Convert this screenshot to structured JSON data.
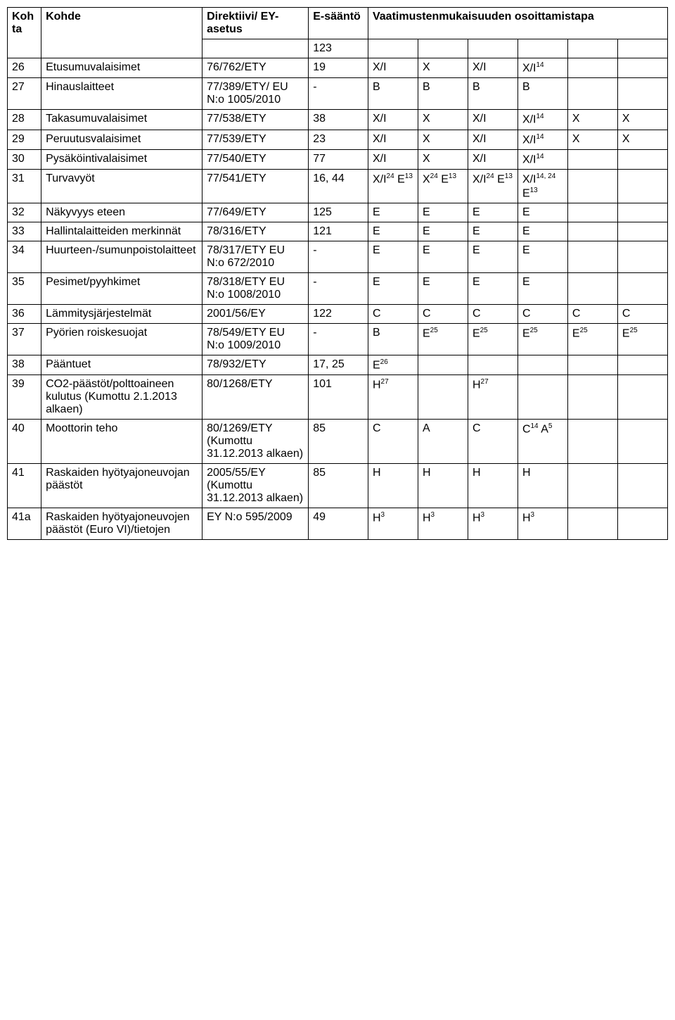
{
  "headers": {
    "kohta": "Kohta",
    "kohde": "Kohde",
    "direktiivi": "Direktiivi/ EY-asetus",
    "esaanto": "E-sääntö",
    "vaatimus": "Vaatimustenmukaisuuden osoittamistapa"
  },
  "rows": [
    {
      "kohta": "",
      "kohde": "",
      "direktiivi": "",
      "esaanto": "123",
      "v": [
        "",
        "",
        "",
        "",
        "",
        ""
      ]
    },
    {
      "kohta": "26",
      "kohde": "Etusumuvalaisimet",
      "direktiivi": "76/762/ETY",
      "esaanto": "19",
      "v": [
        "X/I",
        "X",
        "X/I",
        "X/I<sup>14</sup>",
        "",
        ""
      ]
    },
    {
      "kohta": "27",
      "kohde": "Hinauslaitteet",
      "direktiivi": "77/389/ETY/ EU N:o 1005/2010",
      "esaanto": "-",
      "v": [
        "B",
        "B",
        "B",
        "B",
        "",
        ""
      ]
    },
    {
      "kohta": "28",
      "kohde": "Takasumuvalaisimet",
      "direktiivi": "77/538/ETY",
      "esaanto": "38",
      "v": [
        "X/I",
        "X",
        "X/I",
        "X/I<sup>14</sup>",
        "X",
        "X"
      ]
    },
    {
      "kohta": "29",
      "kohde": "Peruutusvalaisimet",
      "direktiivi": "77/539/ETY",
      "esaanto": "23",
      "v": [
        "X/I",
        "X",
        "X/I",
        "X/I<sup>14</sup>",
        "X",
        "X"
      ]
    },
    {
      "kohta": "30",
      "kohde": "Pysäköintivalaisimet",
      "direktiivi": "77/540/ETY",
      "esaanto": "77",
      "v": [
        "X/I",
        "X",
        "X/I",
        "X/I<sup>14</sup>",
        "",
        ""
      ]
    },
    {
      "kohta": "31",
      "kohde": "Turvavyöt",
      "direktiivi": "77/541/ETY",
      "esaanto": "16, 44",
      "v": [
        "X/I<sup>24</sup> E<sup>13</sup>",
        "X<sup>24</sup> E<sup>13</sup>",
        "X/I<sup>24</sup> E<sup>13</sup>",
        "X/I<sup>14, 24</sup> E<sup>13</sup>",
        "",
        ""
      ]
    },
    {
      "kohta": "32",
      "kohde": "Näkyvyys eteen",
      "direktiivi": "77/649/ETY",
      "esaanto": "125",
      "v": [
        "E",
        "E",
        "E",
        "E",
        "",
        ""
      ]
    },
    {
      "kohta": "33",
      "kohde": "Hallintalaitteiden merkinnät",
      "direktiivi": "78/316/ETY",
      "esaanto": "121",
      "v": [
        "E",
        "E",
        "E",
        "E",
        "",
        ""
      ]
    },
    {
      "kohta": "34",
      "kohde": "Huurteen-/sumunpoistolaitteet",
      "direktiivi": "78/317/ETY EU N:o 672/2010",
      "esaanto": "-",
      "v": [
        "E",
        "E",
        "E",
        "E",
        "",
        ""
      ]
    },
    {
      "kohta": "35",
      "kohde": "Pesimet/pyyhkimet",
      "direktiivi": "78/318/ETY EU N:o 1008/2010",
      "esaanto": "-",
      "v": [
        "E",
        "E",
        "E",
        "E",
        "",
        ""
      ]
    },
    {
      "kohta": "36",
      "kohde": "Lämmitysjärjestelmät",
      "direktiivi": "2001/56/EY",
      "esaanto": "122",
      "v": [
        "C",
        "C",
        "C",
        "C",
        "C",
        "C"
      ]
    },
    {
      "kohta": "37",
      "kohde": "Pyörien roiskesuojat",
      "direktiivi": "78/549/ETY EU N:o 1009/2010",
      "esaanto": "-",
      "v": [
        "B",
        "E<sup>25</sup>",
        "E<sup>25</sup>",
        "E<sup>25</sup>",
        "E<sup>25</sup>",
        "E<sup>25</sup>"
      ]
    },
    {
      "kohta": "38",
      "kohde": "Pääntuet",
      "direktiivi": "78/932/ETY",
      "esaanto": "17, 25",
      "v": [
        "E<sup>26</sup>",
        "",
        "",
        "",
        "",
        ""
      ]
    },
    {
      "kohta": "39",
      "kohde": "CO2-päästöt/polttoaineen kulutus (Kumottu 2.1.2013 alkaen)",
      "direktiivi": "80/1268/ETY",
      "esaanto": "101",
      "v": [
        "H<sup>27</sup>",
        "",
        "H<sup>27</sup>",
        "",
        "",
        ""
      ]
    },
    {
      "kohta": "40",
      "kohde": "Moottorin teho",
      "direktiivi": "80/1269/ETY (Kumottu 31.12.2013 alkaen)",
      "esaanto": "85",
      "v": [
        "C",
        "A",
        "C",
        "C<sup>14</sup> A<sup>5</sup>",
        "",
        ""
      ]
    },
    {
      "kohta": "41",
      "kohde": "Raskaiden hyötyajoneuvojan päästöt",
      "direktiivi": "2005/55/EY (Kumottu 31.12.2013 alkaen)",
      "esaanto": "85",
      "v": [
        "H",
        "H",
        "H",
        "H",
        "",
        ""
      ]
    },
    {
      "kohta": "41a",
      "kohde": "Raskaiden hyötyajoneuvojen päästöt (Euro VI)/tietojen",
      "direktiivi": "EY N:o 595/2009",
      "esaanto": "49",
      "v": [
        "H<sup>3</sup>",
        "H<sup>3</sup>",
        "H<sup>3</sup>",
        "H<sup>3</sup>",
        "",
        ""
      ]
    }
  ]
}
